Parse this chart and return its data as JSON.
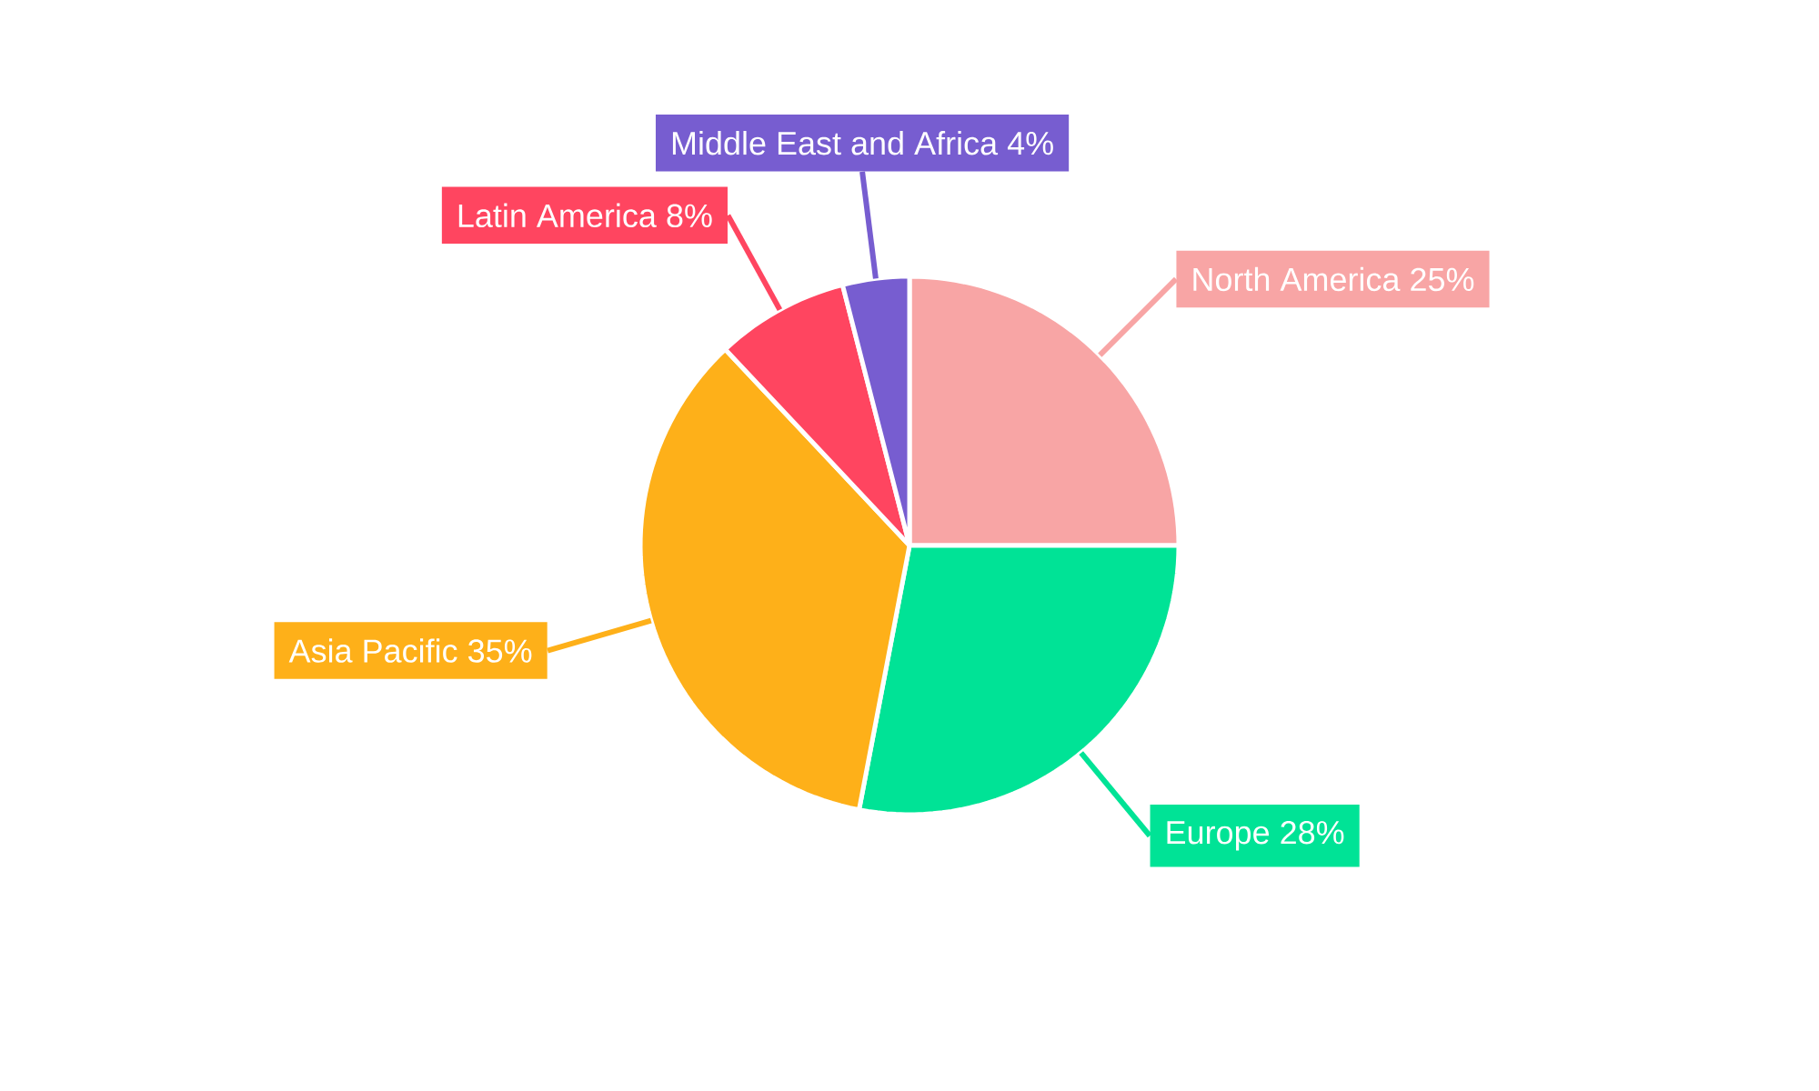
{
  "chart_data": {
    "type": "pie",
    "categories": [
      "North America",
      "Europe",
      "Asia Pacific",
      "Latin America",
      "Middle East and Africa"
    ],
    "values": [
      25,
      28,
      35,
      8,
      4
    ],
    "value_labels": [
      "25%",
      "28%",
      "35%",
      "8%",
      "4%"
    ],
    "colors": [
      "#f8a5a5",
      "#00e396",
      "#feb019",
      "#ff4560",
      "#775dd0"
    ]
  }
}
